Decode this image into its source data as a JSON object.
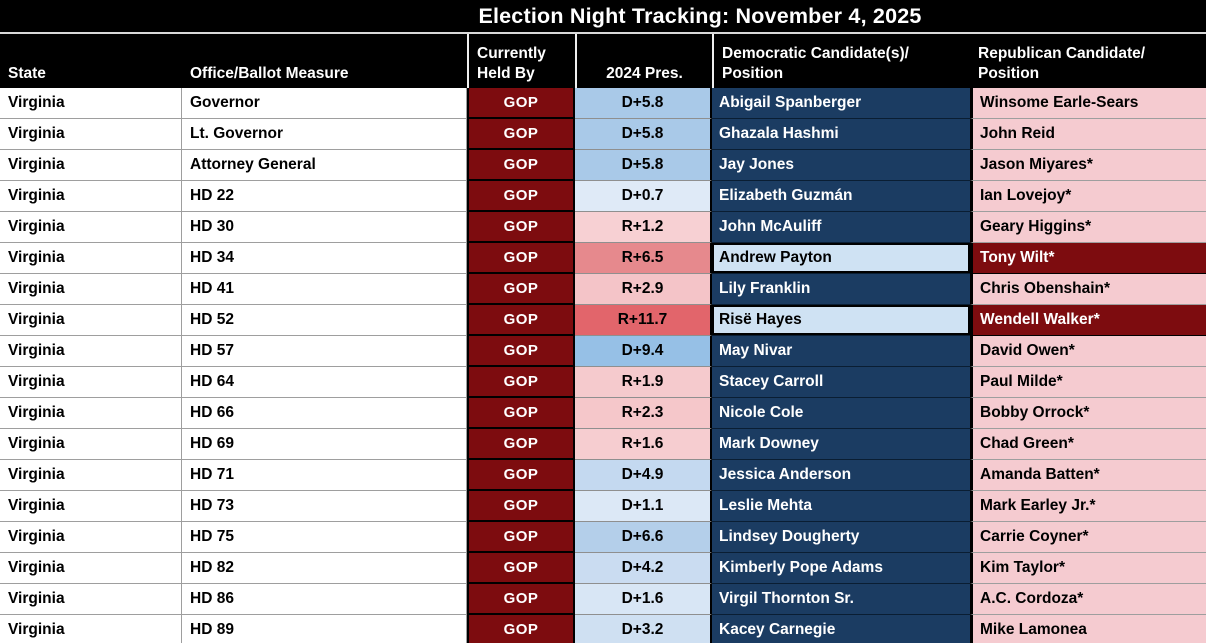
{
  "title": "Election Night Tracking: November 4, 2025",
  "columns": {
    "state": "State",
    "office": "Office/Ballot Measure",
    "held_by": "Currently\nHeld By",
    "pres_2024": "2024 Pres.",
    "dem": "Democratic Candidate(s)/\nPosition",
    "rep": "Republican Candidate/\nPosition"
  },
  "colors": {
    "header_bg": "#000000",
    "header_text": "#ffffff",
    "gop_red": "#7d0c0f",
    "dem_navy": "#1b3c62",
    "rep_pink": "#f5cbd0",
    "dem_flip_bg": "#cfe2f3",
    "rep_win_bg": "#7d0c0f"
  },
  "rows": [
    {
      "state": "Virginia",
      "office": "Governor",
      "held_by": "GOP",
      "margin": "D+5.8",
      "margin_bg": "#a9c9e8",
      "dem": "Abigail Spanberger",
      "dem_flip": false,
      "rep": "Winsome Earle-Sears",
      "rep_win": false
    },
    {
      "state": "Virginia",
      "office": "Lt. Governor",
      "held_by": "GOP",
      "margin": "D+5.8",
      "margin_bg": "#a9c9e8",
      "dem": "Ghazala Hashmi",
      "dem_flip": false,
      "rep": "John Reid",
      "rep_win": false
    },
    {
      "state": "Virginia",
      "office": "Attorney General",
      "held_by": "GOP",
      "margin": "D+5.8",
      "margin_bg": "#a9c9e8",
      "dem": "Jay Jones",
      "dem_flip": false,
      "rep": "Jason Miyares*",
      "rep_win": false
    },
    {
      "state": "Virginia",
      "office": "HD 22",
      "held_by": "GOP",
      "margin": "D+0.7",
      "margin_bg": "#dfeaf7",
      "dem": "Elizabeth Guzmán",
      "dem_flip": false,
      "rep": "Ian Lovejoy*",
      "rep_win": false
    },
    {
      "state": "Virginia",
      "office": "HD 30",
      "held_by": "GOP",
      "margin": "R+1.2",
      "margin_bg": "#f7d0d3",
      "dem": "John McAuliff",
      "dem_flip": false,
      "rep": "Geary Higgins*",
      "rep_win": false
    },
    {
      "state": "Virginia",
      "office": "HD 34",
      "held_by": "GOP",
      "margin": "R+6.5",
      "margin_bg": "#e6898d",
      "dem": "Andrew Payton",
      "dem_flip": true,
      "rep": "Tony Wilt*",
      "rep_win": true
    },
    {
      "state": "Virginia",
      "office": "HD 41",
      "held_by": "GOP",
      "margin": "R+2.9",
      "margin_bg": "#f4c4c8",
      "dem": "Lily Franklin",
      "dem_flip": false,
      "rep": "Chris Obenshain*",
      "rep_win": false
    },
    {
      "state": "Virginia",
      "office": "HD 52",
      "held_by": "GOP",
      "margin": "R+11.7",
      "margin_bg": "#e2656b",
      "dem": "Risë Hayes",
      "dem_flip": true,
      "rep": "Wendell Walker*",
      "rep_win": true
    },
    {
      "state": "Virginia",
      "office": "HD 57",
      "held_by": "GOP",
      "margin": "D+9.4",
      "margin_bg": "#96c0e6",
      "dem": "May Nivar",
      "dem_flip": false,
      "rep": "David Owen*",
      "rep_win": false
    },
    {
      "state": "Virginia",
      "office": "HD 64",
      "held_by": "GOP",
      "margin": "R+1.9",
      "margin_bg": "#f5cacd",
      "dem": "Stacey Carroll",
      "dem_flip": false,
      "rep": "Paul Milde*",
      "rep_win": false
    },
    {
      "state": "Virginia",
      "office": "HD 66",
      "held_by": "GOP",
      "margin": "R+2.3",
      "margin_bg": "#f5c7ca",
      "dem": "Nicole Cole",
      "dem_flip": false,
      "rep": "Bobby Orrock*",
      "rep_win": false
    },
    {
      "state": "Virginia",
      "office": "HD 69",
      "held_by": "GOP",
      "margin": "R+1.6",
      "margin_bg": "#f6cdd0",
      "dem": "Mark Downey",
      "dem_flip": false,
      "rep": "Chad Green*",
      "rep_win": false
    },
    {
      "state": "Virginia",
      "office": "HD 71",
      "held_by": "GOP",
      "margin": "D+4.9",
      "margin_bg": "#c4d9f0",
      "dem": "Jessica Anderson",
      "dem_flip": false,
      "rep": "Amanda Batten*",
      "rep_win": false
    },
    {
      "state": "Virginia",
      "office": "HD 73",
      "held_by": "GOP",
      "margin": "D+1.1",
      "margin_bg": "#dce8f6",
      "dem": "Leslie Mehta",
      "dem_flip": false,
      "rep": "Mark Earley Jr.*",
      "rep_win": false
    },
    {
      "state": "Virginia",
      "office": "HD 75",
      "held_by": "GOP",
      "margin": "D+6.6",
      "margin_bg": "#b4cfea",
      "dem": "Lindsey Dougherty",
      "dem_flip": false,
      "rep": "Carrie Coyner*",
      "rep_win": false
    },
    {
      "state": "Virginia",
      "office": "HD 82",
      "held_by": "GOP",
      "margin": "D+4.2",
      "margin_bg": "#cadcf1",
      "dem": "Kimberly Pope Adams",
      "dem_flip": false,
      "rep": "Kim Taylor*",
      "rep_win": false
    },
    {
      "state": "Virginia",
      "office": "HD 86",
      "held_by": "GOP",
      "margin": "D+1.6",
      "margin_bg": "#d8e6f5",
      "dem": "Virgil Thornton Sr.",
      "dem_flip": false,
      "rep": "A.C. Cordoza*",
      "rep_win": false
    },
    {
      "state": "Virginia",
      "office": "HD 89",
      "held_by": "GOP",
      "margin": "D+3.2",
      "margin_bg": "#cfe0f2",
      "dem": "Kacey Carnegie",
      "dem_flip": false,
      "rep": "Mike Lamonea",
      "rep_win": false
    }
  ]
}
